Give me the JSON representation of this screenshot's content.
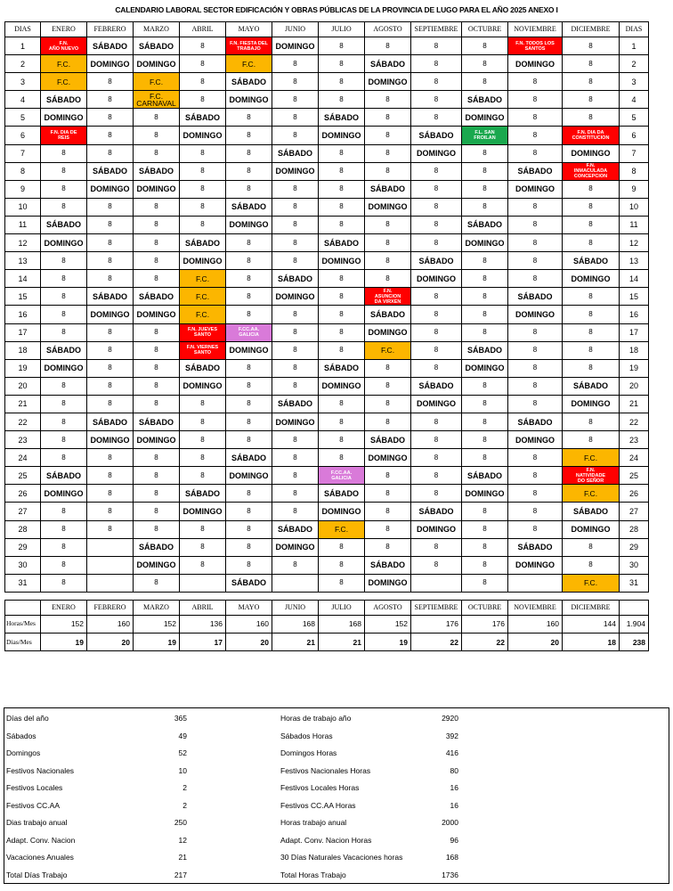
{
  "title": "CALENDARIO LABORAL SECTOR EDIFICACIÓN Y OBRAS PÚBLICAS DE LA PROVINCIA DE LUGO PARA EL AÑO 2025 ANEXO I",
  "days_label": "DIAS",
  "months": [
    "ENERO",
    "FEBRERO",
    "MARZO",
    "ABRIL",
    "MAYO",
    "JUNIO",
    "JULIO",
    "AGOSTO",
    "SEPTIEMBRE",
    "OCTUBRE",
    "NOVIEMBRE",
    "DICIEMBRE"
  ],
  "legend_colors": {
    "fn": "#ff0000",
    "fc": "#fcb600",
    "ca": "#d97ad9",
    "fl": "#1aa84e"
  },
  "rows": [
    [
      "F.N.|AÑO NUEVO",
      "SÁBADO",
      "SÁBADO",
      "8",
      "F.N. FIESTA DEL|TRABAJO",
      "DOMINGO",
      "8",
      "8",
      "8",
      "8",
      "F.N. TODOS LOS|SANTOS",
      "8"
    ],
    [
      "F.C.",
      "DOMINGO",
      "DOMINGO",
      "8",
      "F.C.",
      "8",
      "8",
      "SÁBADO",
      "8",
      "8",
      "DOMINGO",
      "8"
    ],
    [
      "F.C.",
      "8",
      "F.C.",
      "8",
      "SÁBADO",
      "8",
      "8",
      "DOMINGO",
      "8",
      "8",
      "8",
      "8"
    ],
    [
      "SÁBADO",
      "8",
      "F.C.|CARNAVAL",
      "8",
      "DOMINGO",
      "8",
      "8",
      "8",
      "8",
      "SÁBADO",
      "8",
      "8"
    ],
    [
      "DOMINGO",
      "8",
      "8",
      "SÁBADO",
      "8",
      "8",
      "SÁBADO",
      "8",
      "8",
      "DOMINGO",
      "8",
      "8"
    ],
    [
      "F.N. DIA DE|REIS",
      "8",
      "8",
      "DOMINGO",
      "8",
      "8",
      "DOMINGO",
      "8",
      "SÁBADO",
      "F.L. SAN|FROILAN",
      "8",
      "F.N. DIA DA|CONSTITUCION"
    ],
    [
      "8",
      "8",
      "8",
      "8",
      "8",
      "SÁBADO",
      "8",
      "8",
      "DOMINGO",
      "8",
      "8",
      "DOMINGO"
    ],
    [
      "8",
      "SÁBADO",
      "SÁBADO",
      "8",
      "8",
      "DOMINGO",
      "8",
      "8",
      "8",
      "8",
      "SÁBADO",
      "F.N.|INMACULADA|CONCEPCION"
    ],
    [
      "8",
      "DOMINGO",
      "DOMINGO",
      "8",
      "8",
      "8",
      "8",
      "SÁBADO",
      "8",
      "8",
      "DOMINGO",
      "8"
    ],
    [
      "8",
      "8",
      "8",
      "8",
      "SÁBADO",
      "8",
      "8",
      "DOMINGO",
      "8",
      "8",
      "8",
      "8"
    ],
    [
      "SÁBADO",
      "8",
      "8",
      "8",
      "DOMINGO",
      "8",
      "8",
      "8",
      "8",
      "SÁBADO",
      "8",
      "8"
    ],
    [
      "DOMINGO",
      "8",
      "8",
      "SÁBADO",
      "8",
      "8",
      "SÁBADO",
      "8",
      "8",
      "DOMINGO",
      "8",
      "8"
    ],
    [
      "8",
      "8",
      "8",
      "DOMINGO",
      "8",
      "8",
      "DOMINGO",
      "8",
      "SÁBADO",
      "8",
      "8",
      "SÁBADO"
    ],
    [
      "8",
      "8",
      "8",
      "F.C.",
      "8",
      "SÁBADO",
      "8",
      "8",
      "DOMINGO",
      "8",
      "8",
      "DOMINGO"
    ],
    [
      "8",
      "SÁBADO",
      "SÁBADO",
      "F.C.",
      "8",
      "DOMINGO",
      "8",
      "F.N.|ASUNCION|DA VIRXEN",
      "8",
      "8",
      "SÁBADO",
      "8"
    ],
    [
      "8",
      "DOMINGO",
      "DOMINGO",
      "F.C.",
      "8",
      "8",
      "8",
      "SÁBADO",
      "8",
      "8",
      "DOMINGO",
      "8"
    ],
    [
      "8",
      "8",
      "8",
      "F.N. JUEVES|SANTO",
      "F.CC.AA.|GALICIA",
      "8",
      "8",
      "DOMINGO",
      "8",
      "8",
      "8",
      "8"
    ],
    [
      "SÁBADO",
      "8",
      "8",
      "F.N. VIERNES|SANTO",
      "DOMINGO",
      "8",
      "8",
      "F.C.",
      "8",
      "SÁBADO",
      "8",
      "8"
    ],
    [
      "DOMINGO",
      "8",
      "8",
      "SÁBADO",
      "8",
      "8",
      "SÁBADO",
      "8",
      "8",
      "DOMINGO",
      "8",
      "8"
    ],
    [
      "8",
      "8",
      "8",
      "DOMINGO",
      "8",
      "8",
      "DOMINGO",
      "8",
      "SÁBADO",
      "8",
      "8",
      "SÁBADO"
    ],
    [
      "8",
      "8",
      "8",
      "8",
      "8",
      "SÁBADO",
      "8",
      "8",
      "DOMINGO",
      "8",
      "8",
      "DOMINGO"
    ],
    [
      "8",
      "SÁBADO",
      "SÁBADO",
      "8",
      "8",
      "DOMINGO",
      "8",
      "8",
      "8",
      "8",
      "SÁBADO",
      "8"
    ],
    [
      "8",
      "DOMINGO",
      "DOMINGO",
      "8",
      "8",
      "8",
      "8",
      "SÁBADO",
      "8",
      "8",
      "DOMINGO",
      "8"
    ],
    [
      "8",
      "8",
      "8",
      "8",
      "SÁBADO",
      "8",
      "8",
      "DOMINGO",
      "8",
      "8",
      "8",
      "F.C."
    ],
    [
      "SÁBADO",
      "8",
      "8",
      "8",
      "DOMINGO",
      "8",
      "F.CC.AA.|GALICIA",
      "8",
      "8",
      "SÁBADO",
      "8",
      "F.N.|NATIVIDADE|DO SEÑOR"
    ],
    [
      "DOMINGO",
      "8",
      "8",
      "SÁBADO",
      "8",
      "8",
      "SÁBADO",
      "8",
      "8",
      "DOMINGO",
      "8",
      "F.C."
    ],
    [
      "8",
      "8",
      "8",
      "DOMINGO",
      "8",
      "8",
      "DOMINGO",
      "8",
      "SÁBADO",
      "8",
      "8",
      "SÁBADO"
    ],
    [
      "8",
      "8",
      "8",
      "8",
      "8",
      "SÁBADO",
      "F.C.",
      "8",
      "DOMINGO",
      "8",
      "8",
      "DOMINGO"
    ],
    [
      "8",
      "",
      "SÁBADO",
      "8",
      "8",
      "DOMINGO",
      "8",
      "8",
      "8",
      "8",
      "SÁBADO",
      "8"
    ],
    [
      "8",
      "",
      "DOMINGO",
      "8",
      "8",
      "8",
      "8",
      "SÁBADO",
      "8",
      "8",
      "DOMINGO",
      "8"
    ],
    [
      "8",
      "",
      "8",
      "",
      "SÁBADO",
      "",
      "8",
      "DOMINGO",
      "",
      "8",
      "",
      "F.C."
    ]
  ],
  "horas_label": "Horas/Mes",
  "dias_mes_label": "Dias/Mes",
  "horas_mes": [
    "152",
    "160",
    "152",
    "136",
    "160",
    "168",
    "168",
    "152",
    "176",
    "176",
    "160",
    "144"
  ],
  "horas_total": "1.904",
  "dias_mes": [
    "19",
    "20",
    "19",
    "17",
    "20",
    "21",
    "21",
    "19",
    "22",
    "22",
    "20",
    "18"
  ],
  "dias_total": "238",
  "summary": [
    [
      "Días del año",
      "365",
      "Horas de trabajo año",
      "2920"
    ],
    [
      "Sábados",
      "49",
      "Sábados Horas",
      "392"
    ],
    [
      "Domingos",
      "52",
      "Domingos Horas",
      "416"
    ],
    [
      "Festivos Nacionales",
      "10",
      "Festivos Nacionales Horas",
      "80"
    ],
    [
      "Festivos Locales",
      "2",
      "Festivos Locales Horas",
      "16"
    ],
    [
      "Festivos CC.AA",
      "2",
      "Festivos CC.AA Horas",
      "16"
    ],
    [
      "Dias trabajo anual",
      "250",
      "Horas trabajo anual",
      "2000"
    ],
    [
      "Adapt. Conv. Nacion",
      "12",
      "Adapt. Conv. Nacion Horas",
      "96"
    ],
    [
      "Vacaciones Anuales",
      "21",
      "30 Días Naturales Vacaciones horas",
      "168"
    ],
    [
      "Total Días Trabajo",
      "217",
      "Total Horas Trabajo",
      "1736"
    ]
  ]
}
